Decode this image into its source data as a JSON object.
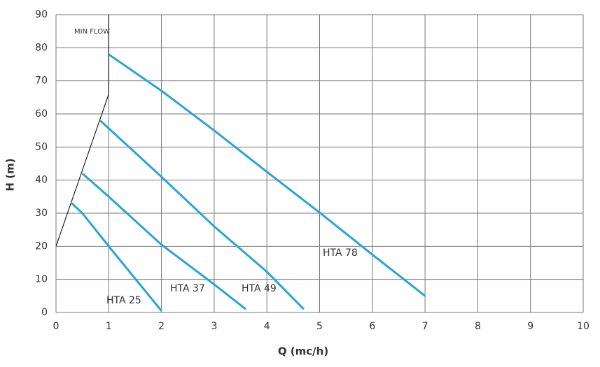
{
  "chart_data": {
    "type": "line",
    "x_label": "Q (mc/h)",
    "y_label": "H (m)",
    "xlim": [
      0,
      10
    ],
    "xticks": [
      0,
      1,
      2,
      3,
      4,
      5,
      6,
      7,
      8,
      9,
      10
    ],
    "ylim": [
      0,
      90
    ],
    "yticks": [
      0,
      10,
      20,
      30,
      40,
      50,
      60,
      70,
      80,
      90
    ],
    "grid": true,
    "annotation": "MIN FLOW",
    "series": [
      {
        "name": "HTA 25",
        "color": "#2aa3d8",
        "x": [
          0.3,
          0.5,
          1,
          2
        ],
        "values": [
          33,
          30,
          20,
          0.5
        ]
      },
      {
        "name": "HTA 37",
        "color": "#2aa3d8",
        "x": [
          0.5,
          1,
          2,
          3,
          3.6
        ],
        "values": [
          42,
          35,
          20.5,
          8.5,
          1
        ]
      },
      {
        "name": "HTA 49",
        "color": "#2aa3d8",
        "x": [
          0.84,
          2,
          3,
          4,
          4.7
        ],
        "values": [
          58,
          41,
          26,
          12.3,
          1
        ]
      },
      {
        "name": "HTA 78",
        "color": "#2aa3d8",
        "x": [
          1,
          2,
          3,
          4,
          5,
          6,
          7
        ],
        "values": [
          78,
          67,
          55,
          42.5,
          30.2,
          17.5,
          5
        ]
      },
      {
        "color": "#222222",
        "x": [
          0,
          1,
          1
        ],
        "values": [
          20,
          66,
          90
        ]
      }
    ]
  }
}
